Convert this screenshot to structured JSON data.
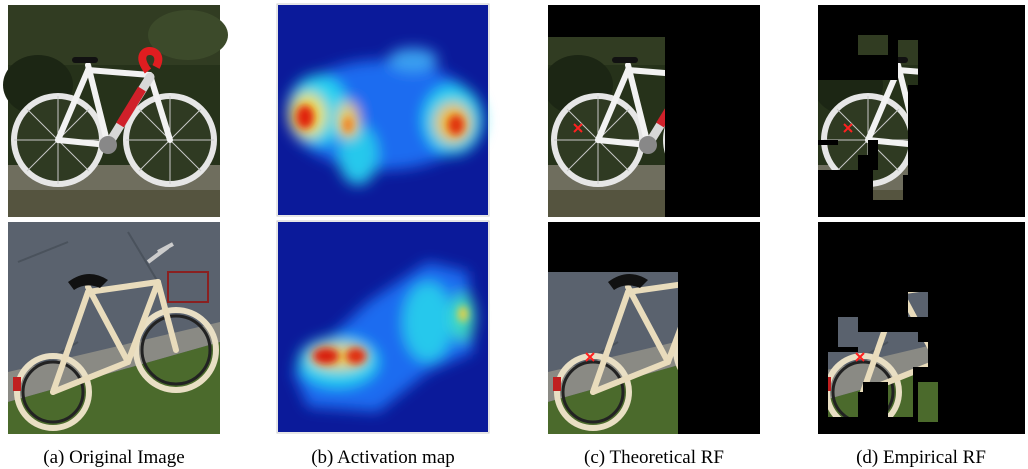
{
  "figure": {
    "captions": [
      "(a) Original Image",
      "(b) Activation map",
      "(c) Theoretical RF",
      "(d) Empirical RF"
    ]
  }
}
